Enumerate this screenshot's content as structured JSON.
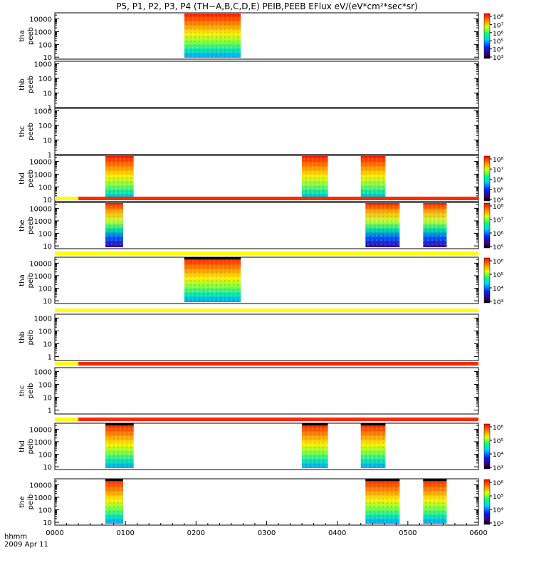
{
  "title": "P5, P1, P2, P3, P4 (TH−A,B,C,D,E) PEIB,PEEB EFlux eV/(eV*cm²*sec*sr)",
  "bottom_label": {
    "line1": "hhmm",
    "line2": "2009 Apr 11"
  },
  "colors": {
    "red": "#ff2a00",
    "yellow": "#ffff00",
    "black": "#000000"
  },
  "chart_data": {
    "type": "heatmap",
    "x_ticks": [
      "0000",
      "0100",
      "0200",
      "0300",
      "0400",
      "0500",
      "0600"
    ],
    "x_range_hours": [
      0,
      6
    ],
    "y_scale": "log",
    "panels": [
      {
        "name": "tha peeb",
        "probe": "tha",
        "inst": "peeb",
        "y_ticks": [
          "10",
          "100",
          "1000",
          "10000"
        ],
        "ylim": [
          7,
          30000
        ],
        "colorbar_ticks": [
          "10³",
          "10⁴",
          "10⁵",
          "10⁶",
          "10⁷",
          "10⁸"
        ],
        "data_blocks": [
          {
            "start": "0150",
            "end": "0238"
          }
        ],
        "status_bar": null
      },
      {
        "name": "thb peeb",
        "probe": "thb",
        "inst": "peeb",
        "y_ticks": [
          "1",
          "10",
          "100",
          "1000"
        ],
        "ylim": [
          1,
          1500
        ],
        "colorbar_ticks": [],
        "data_blocks": [],
        "status_bar": null
      },
      {
        "name": "thc peeb",
        "probe": "thc",
        "inst": "peeb",
        "y_ticks": [
          "1",
          "10",
          "100",
          "1000"
        ],
        "ylim": [
          1,
          1500
        ],
        "colorbar_ticks": [],
        "data_blocks": [],
        "status_bar": null
      },
      {
        "name": "thd peeb",
        "probe": "thd",
        "inst": "peeb",
        "y_ticks": [
          "10",
          "100",
          "1000",
          "10000"
        ],
        "ylim": [
          7,
          30000
        ],
        "colorbar_ticks": [
          "10⁴",
          "10⁵",
          "10⁶",
          "10⁷",
          "10⁸"
        ],
        "data_blocks": [
          {
            "start": "0043",
            "end": "0107"
          },
          {
            "start": "0330",
            "end": "0352"
          },
          {
            "start": "0420",
            "end": "0441"
          }
        ],
        "status_bar": null
      },
      {
        "name": "the peeb",
        "probe": "the",
        "inst": "peeb",
        "y_ticks": [
          "10",
          "100",
          "1000",
          "10000"
        ],
        "ylim": [
          6,
          30000
        ],
        "colorbar_ticks": [
          "10⁵",
          "10⁶",
          "10⁷",
          "10⁸"
        ],
        "data_blocks": [
          {
            "start": "0043",
            "end": "0058"
          },
          {
            "start": "0424",
            "end": "0453"
          },
          {
            "start": "0513",
            "end": "0533"
          }
        ],
        "status_bar": [
          {
            "start": "0000",
            "end": "0020",
            "color": "yellow"
          },
          {
            "start": "0020",
            "end": "0600",
            "color": "red"
          }
        ]
      },
      {
        "name": "tha peib",
        "probe": "tha",
        "inst": "peib",
        "y_ticks": [
          "10",
          "100",
          "1000",
          "10000"
        ],
        "ylim": [
          6,
          30000
        ],
        "colorbar_ticks": [
          "10³",
          "10⁴",
          "10⁵",
          "10⁶"
        ],
        "data_blocks": [
          {
            "start": "0150",
            "end": "0238"
          }
        ],
        "status_bar": [
          {
            "start": "0000",
            "end": "0600",
            "color": "yellow"
          }
        ]
      },
      {
        "name": "thb peib",
        "probe": "thb",
        "inst": "peib",
        "y_ticks": [
          "1",
          "10",
          "100",
          "1000"
        ],
        "ylim": [
          0.5,
          2000
        ],
        "colorbar_ticks": [],
        "data_blocks": [],
        "status_bar": [
          {
            "start": "0000",
            "end": "0600",
            "color": "yellow"
          }
        ]
      },
      {
        "name": "thc peib",
        "probe": "thc",
        "inst": "peib",
        "y_ticks": [
          "1",
          "10",
          "100",
          "1000"
        ],
        "ylim": [
          0.5,
          2000
        ],
        "colorbar_ticks": [],
        "data_blocks": [],
        "status_bar": [
          {
            "start": "0000",
            "end": "0020",
            "color": "yellow"
          },
          {
            "start": "0020",
            "end": "0600",
            "color": "red"
          }
        ]
      },
      {
        "name": "thd peib",
        "probe": "thd",
        "inst": "peib",
        "y_ticks": [
          "10",
          "100",
          "1000",
          "10000"
        ],
        "ylim": [
          6,
          30000
        ],
        "colorbar_ticks": [
          "10³",
          "10⁴",
          "10⁵",
          "10⁶"
        ],
        "data_blocks": [
          {
            "start": "0043",
            "end": "0107"
          },
          {
            "start": "0330",
            "end": "0352"
          },
          {
            "start": "0420",
            "end": "0441"
          }
        ],
        "status_bar": [
          {
            "start": "0000",
            "end": "0020",
            "color": "yellow"
          },
          {
            "start": "0020",
            "end": "0600",
            "color": "red"
          }
        ]
      },
      {
        "name": "the peib",
        "probe": "the",
        "inst": "peib",
        "y_ticks": [
          "10",
          "100",
          "1000",
          "10000"
        ],
        "ylim": [
          6,
          30000
        ],
        "colorbar_ticks": [
          "10³",
          "10⁴",
          "10⁵",
          "10⁶"
        ],
        "data_blocks": [
          {
            "start": "0043",
            "end": "0058"
          },
          {
            "start": "0424",
            "end": "0453"
          },
          {
            "start": "0513",
            "end": "0533"
          }
        ],
        "status_bar": null
      }
    ]
  }
}
